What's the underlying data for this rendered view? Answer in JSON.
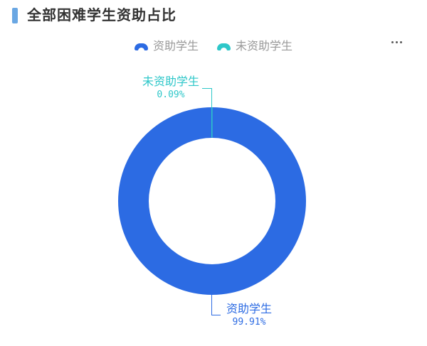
{
  "header": {
    "title": "全部困难学生资助占比",
    "accent_color": "#6aa7e3"
  },
  "legend": {
    "items": [
      {
        "label": "资助学生",
        "color": "#2c6be3"
      },
      {
        "label": "未资助学生",
        "color": "#2ec7c9"
      }
    ],
    "text_color": "#999999"
  },
  "toolbar": {
    "more_icon": "more-options"
  },
  "chart_data": {
    "type": "pie",
    "subtype": "donut",
    "title": "全部困难学生资助占比",
    "legend_position": "top",
    "legend_entries": [
      "资助学生",
      "未资助学生"
    ],
    "inner_radius_ratio": 0.67,
    "slices": [
      {
        "label": "资助学生",
        "value_percent": 99.91,
        "display_percent": "99.91%",
        "color": "#2c6be3",
        "label_position": "bottom"
      },
      {
        "label": "未资助学生",
        "value_percent": 0.09,
        "display_percent": "0.09%",
        "color": "#2ec7c9",
        "label_position": "top"
      }
    ]
  }
}
